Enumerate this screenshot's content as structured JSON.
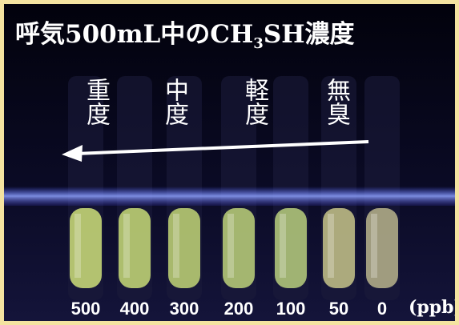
{
  "title": {
    "before": "呼気500mL中のCH",
    "subscript": "3",
    "after": "SH濃度"
  },
  "severity_labels": [
    "重度",
    "中度",
    "軽度",
    "無臭"
  ],
  "concentrations": [
    "500",
    "400",
    "300",
    "200",
    "100",
    "50",
    "0"
  ],
  "unit": "(ppb)"
}
